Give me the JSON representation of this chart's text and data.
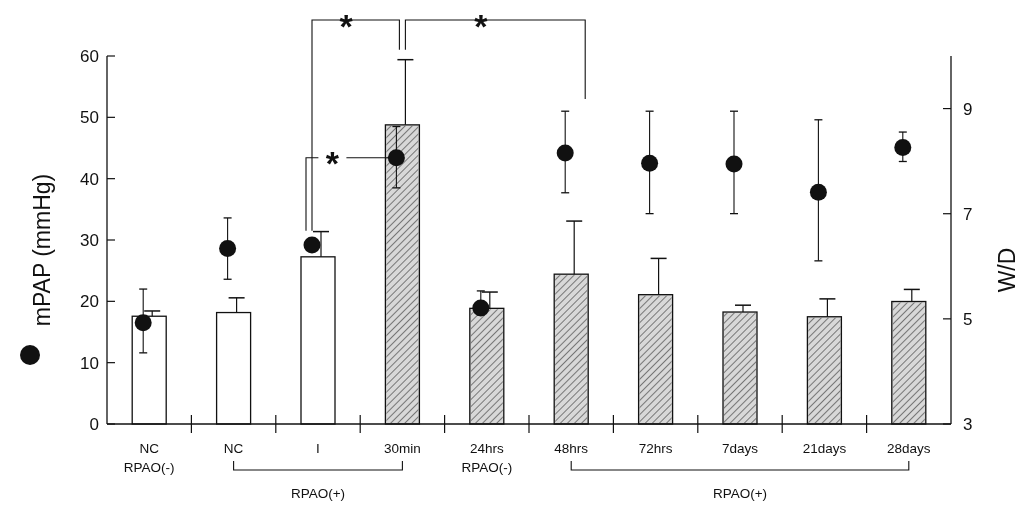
{
  "chart_data": {
    "type": "bar",
    "ylabel": "mPAP (mmHg)",
    "y2label": "W/D",
    "categories": [
      "NC",
      "NC",
      "I",
      "30min",
      "24hrs",
      "48hrs",
      "72hrs",
      "7days",
      "21days",
      "28days"
    ],
    "series": [
      {
        "axis": "y2",
        "colors": [
          "#ffffff",
          "#ffffff",
          "#ffffff",
          "#d8d8d8",
          "#d8d8d8",
          "#d8d8d8",
          "#d8d8d8",
          "#d8d8d8",
          "#d8d8d8",
          "#d8d8d8"
        ],
        "values": [
          5.05,
          5.12,
          6.18,
          8.69,
          5.2,
          5.85,
          5.46,
          5.13,
          5.04,
          5.33
        ],
        "errors": [
          [
            5.05,
            5.15
          ],
          [
            5.12,
            5.4
          ],
          [
            6.18,
            6.66
          ],
          [
            8.69,
            9.93
          ],
          [
            5.2,
            5.51
          ],
          [
            5.85,
            6.86
          ],
          [
            5.46,
            6.15
          ],
          [
            5.13,
            5.26
          ],
          [
            5.04,
            5.38
          ],
          [
            5.33,
            5.56
          ]
        ]
      },
      {
        "type": "scatter",
        "color": "#111111",
        "marker": "circle",
        "values": [
          16.5,
          28.6,
          29.2,
          43.4,
          18.9,
          44.2,
          42.5,
          42.4,
          37.8,
          45.1
        ],
        "errors": [
          [
            11.6,
            22.0
          ],
          [
            23.6,
            33.6
          ],
          null,
          [
            38.5,
            48.5
          ],
          [
            17.8,
            21.7
          ],
          [
            37.7,
            51.0
          ],
          [
            34.3,
            51.0
          ],
          [
            34.3,
            51.0
          ],
          [
            26.6,
            49.6
          ],
          [
            42.8,
            47.6
          ]
        ]
      }
    ],
    "ylim": [
      0,
      60
    ],
    "yticks": [
      0,
      10,
      20,
      30,
      40,
      50,
      60
    ],
    "y2lim": [
      3,
      10
    ],
    "y2ticks": [
      3,
      5,
      7,
      9
    ],
    "annotations": [
      "*",
      "*",
      {
        "text": "*",
        "x": "30min",
        "y": 43.4
      },
      "RPAO(-)",
      "RPAO(+)",
      "RPAO(-)",
      "RPAO(+)"
    ]
  }
}
